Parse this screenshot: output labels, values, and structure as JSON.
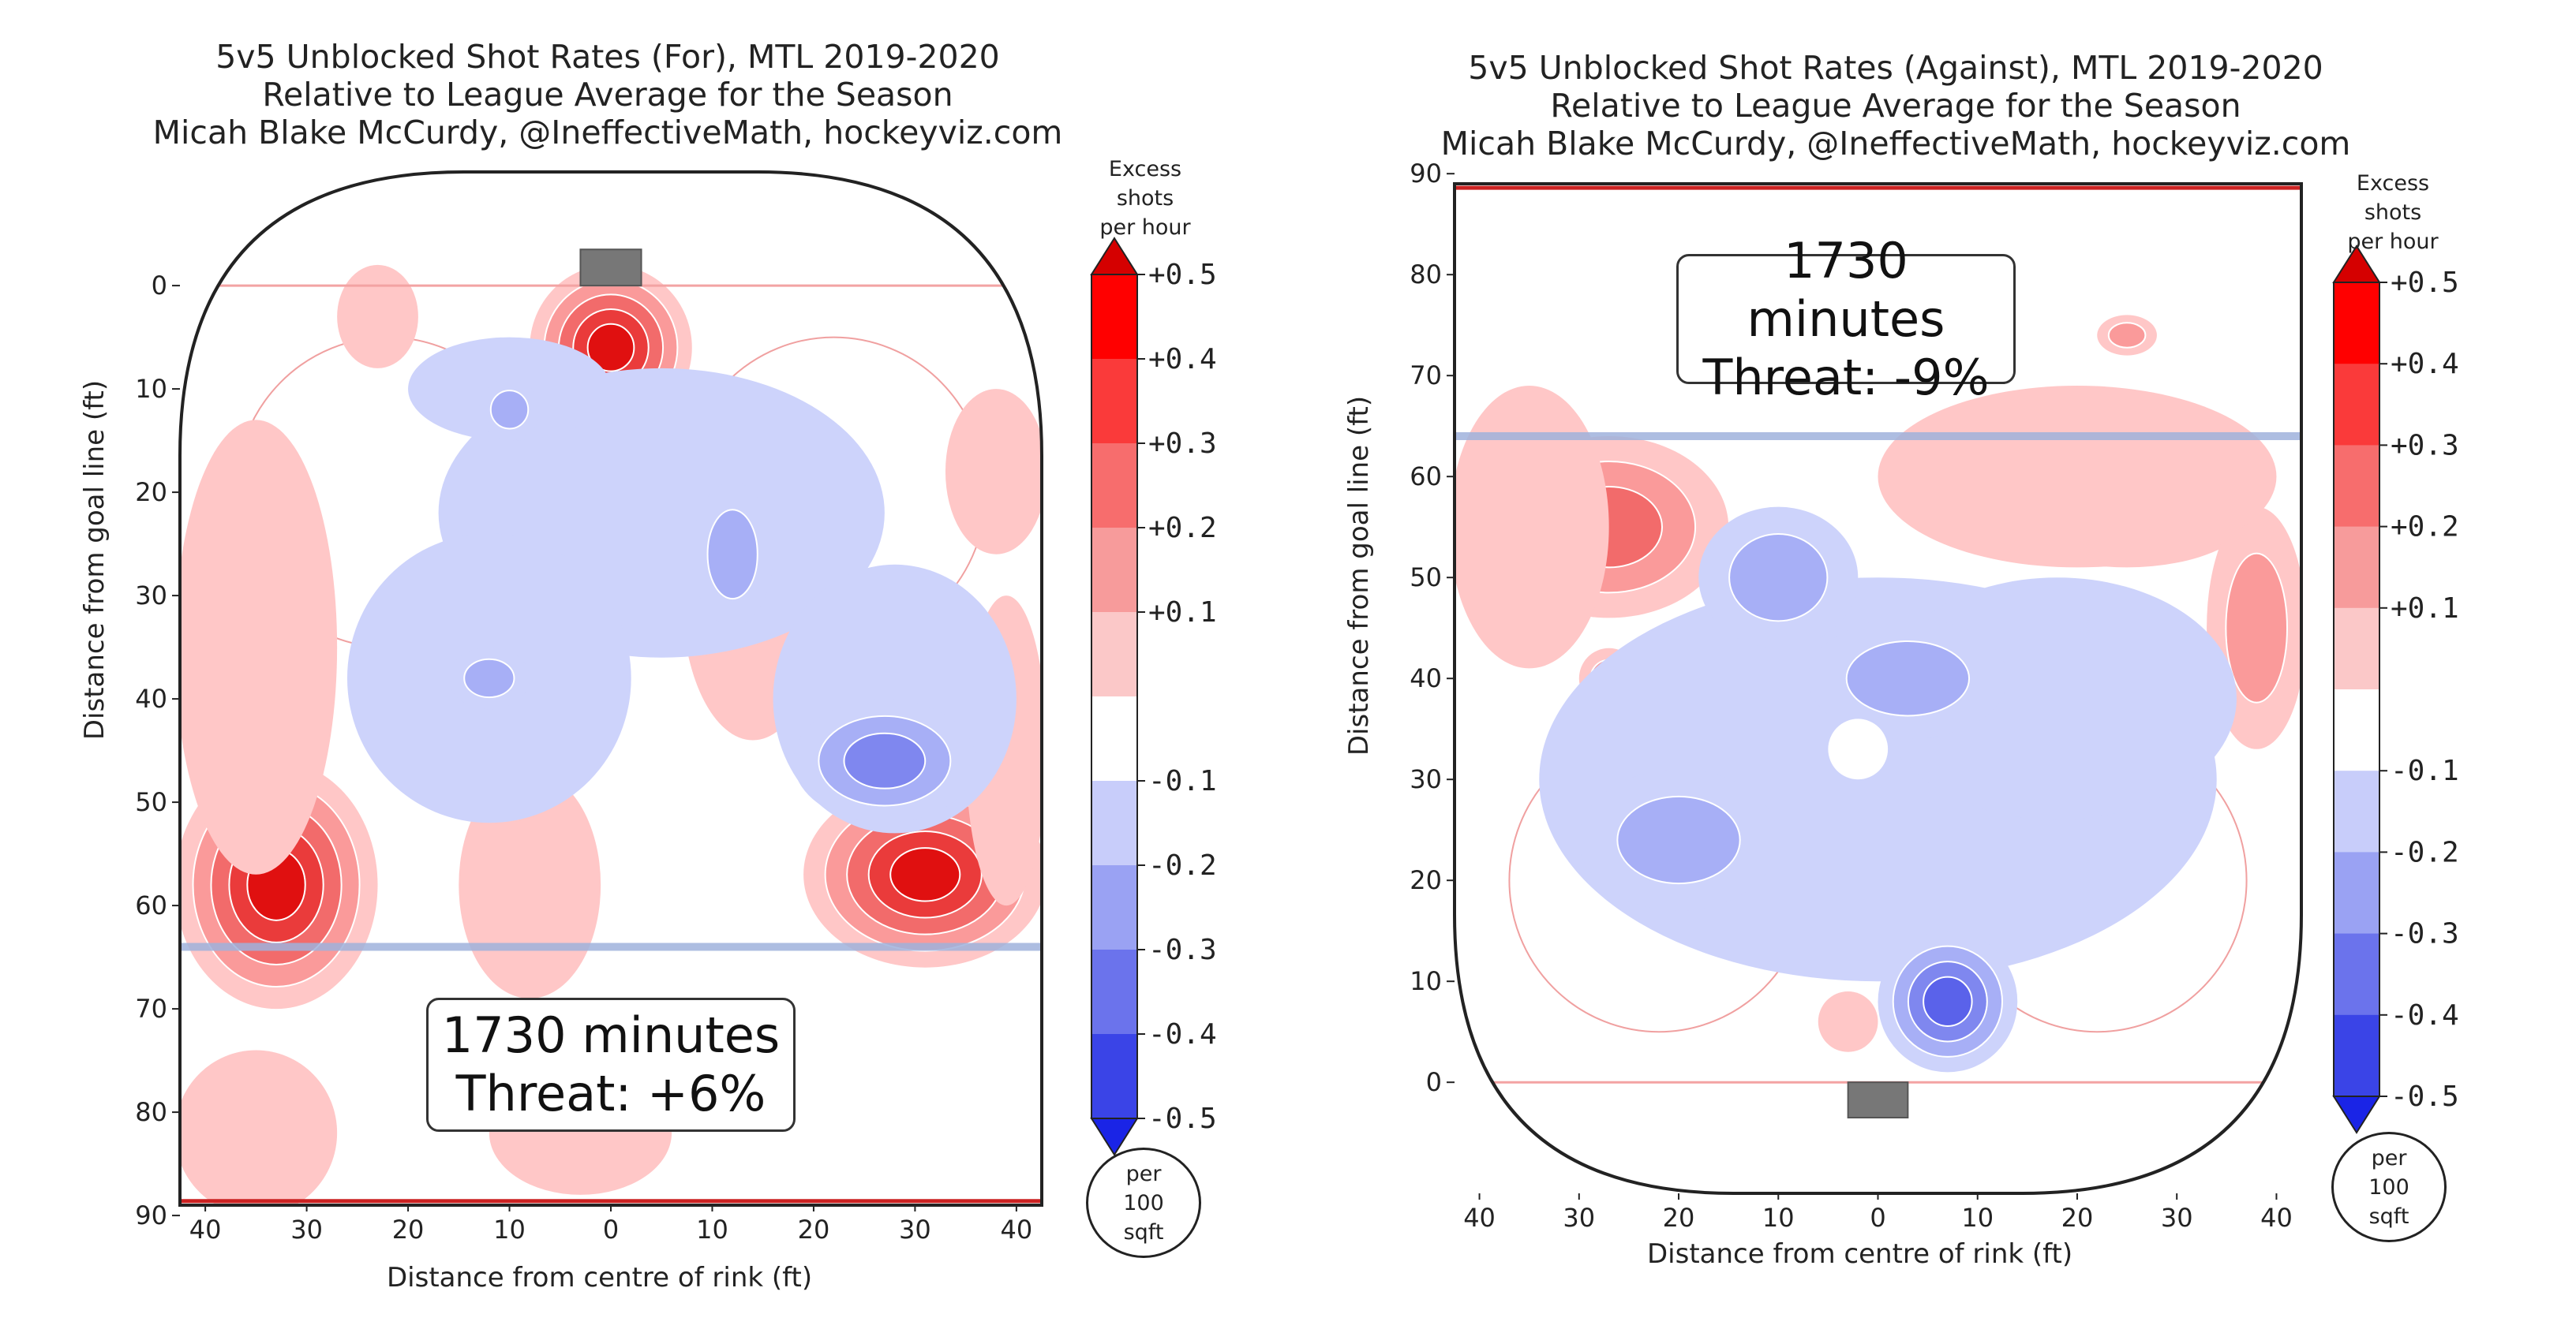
{
  "chart_data": [
    {
      "type": "heatmap",
      "title": "5v5 Unblocked Shot Rates (For), MTL 2019-2020",
      "subtitle": "Relative to League Average for the Season",
      "credit": "Micah Blake McCurdy, @IneffectiveMath, hockeyviz.com",
      "xlabel": "Distance from centre of rink (ft)",
      "ylabel": "Distance from goal line (ft)",
      "x_ticks": [
        "40",
        "30",
        "20",
        "10",
        "0",
        "10",
        "20",
        "30",
        "40"
      ],
      "y_ticks": [
        "0",
        "10",
        "20",
        "30",
        "40",
        "50",
        "60",
        "70",
        "80",
        "90"
      ],
      "xlim": [
        -42.5,
        42.5
      ],
      "ylim": [
        -11,
        89
      ],
      "y_direction": "down",
      "colorbar": {
        "title": [
          "Excess",
          "shots",
          "per hour"
        ],
        "ticks": [
          "+0.5",
          "+0.4",
          "+0.3",
          "+0.2",
          "+0.1",
          "-0.1",
          "-0.2",
          "-0.3",
          "-0.4",
          "-0.5"
        ],
        "units": [
          "per",
          "100",
          "sqft"
        ]
      },
      "annotation": [
        "1730 minutes",
        "Threat: +6%"
      ],
      "blobs": [
        {
          "x": -33,
          "y": 58,
          "rx": 10,
          "ry": 12,
          "level": 0.5
        },
        {
          "x": 31,
          "y": 57,
          "rx": 12,
          "ry": 9,
          "level": 0.5
        },
        {
          "x": 0,
          "y": 6,
          "rx": 8,
          "ry": 8,
          "level": 0.5
        },
        {
          "x": -35,
          "y": 35,
          "rx": 8,
          "ry": 22,
          "level": 0.1
        },
        {
          "x": 39,
          "y": 45,
          "rx": 4,
          "ry": 15,
          "level": 0.1
        },
        {
          "x": 38,
          "y": 18,
          "rx": 5,
          "ry": 8,
          "level": 0.1
        },
        {
          "x": -23,
          "y": 3,
          "rx": 4,
          "ry": 5,
          "level": 0.1
        },
        {
          "x": -3,
          "y": 23,
          "rx": 13,
          "ry": 5,
          "level": 0.1
        },
        {
          "x": 14,
          "y": 30,
          "rx": 7,
          "ry": 14,
          "level": 0.1
        },
        {
          "x": -8,
          "y": 58,
          "rx": 7,
          "ry": 11,
          "level": 0.1
        },
        {
          "x": -3,
          "y": 82,
          "rx": 9,
          "ry": 6,
          "level": 0.1
        },
        {
          "x": -35,
          "y": 82,
          "rx": 8,
          "ry": 8,
          "level": 0.1
        },
        {
          "x": 5,
          "y": 22,
          "rx": 22,
          "ry": 14,
          "level": -0.1
        },
        {
          "x": -12,
          "y": 38,
          "rx": 14,
          "ry": 14,
          "level": -0.1
        },
        {
          "x": -10,
          "y": 10,
          "rx": 10,
          "ry": 5,
          "level": -0.1
        },
        {
          "x": 28,
          "y": 40,
          "rx": 12,
          "ry": 13,
          "level": -0.1
        },
        {
          "x": 27,
          "y": 46,
          "rx": 9,
          "ry": 6,
          "level": -0.3
        },
        {
          "x": -12,
          "y": 38,
          "rx": 4,
          "ry": 3,
          "level": -0.2
        },
        {
          "x": 12,
          "y": 26,
          "rx": 4,
          "ry": 7,
          "level": -0.2
        },
        {
          "x": -10,
          "y": 12,
          "rx": 3,
          "ry": 3,
          "level": -0.2
        }
      ]
    },
    {
      "type": "heatmap",
      "title": "5v5 Unblocked Shot Rates (Against), MTL 2019-2020",
      "subtitle": "Relative to League Average for the Season",
      "credit": "Micah Blake McCurdy, @IneffectiveMath, hockeyviz.com",
      "xlabel": "Distance from centre of rink (ft)",
      "ylabel": "Distance from goal line (ft)",
      "x_ticks": [
        "40",
        "30",
        "20",
        "10",
        "0",
        "10",
        "20",
        "30",
        "40"
      ],
      "y_ticks": [
        "0",
        "10",
        "20",
        "30",
        "40",
        "50",
        "60",
        "70",
        "80",
        "90"
      ],
      "xlim": [
        -42.5,
        42.5
      ],
      "ylim": [
        -11,
        89
      ],
      "y_direction": "up",
      "colorbar": {
        "title": [
          "Excess",
          "shots",
          "per hour"
        ],
        "ticks": [
          "+0.5",
          "+0.4",
          "+0.3",
          "+0.2",
          "+0.1",
          "-0.1",
          "-0.2",
          "-0.3",
          "-0.4",
          "-0.5"
        ],
        "units": [
          "per",
          "100",
          "sqft"
        ]
      },
      "annotation": [
        "1730 minutes",
        "Threat: -9%"
      ],
      "blobs": [
        {
          "x": -27,
          "y": 55,
          "rx": 12,
          "ry": 9,
          "level": 0.3
        },
        {
          "x": 25,
          "y": 57,
          "rx": 13,
          "ry": 6,
          "level": 0.2
        },
        {
          "x": 38,
          "y": 45,
          "rx": 5,
          "ry": 12,
          "level": 0.2
        },
        {
          "x": -35,
          "y": 55,
          "rx": 8,
          "ry": 14,
          "level": 0.1
        },
        {
          "x": 20,
          "y": 60,
          "rx": 20,
          "ry": 9,
          "level": 0.1
        },
        {
          "x": 25,
          "y": 74,
          "rx": 3,
          "ry": 2,
          "level": 0.2
        },
        {
          "x": -27,
          "y": 40,
          "rx": 3,
          "ry": 3,
          "level": 0.2
        },
        {
          "x": 4,
          "y": 20,
          "rx": 7,
          "ry": 3,
          "level": 0.1
        },
        {
          "x": -3,
          "y": 6,
          "rx": 3,
          "ry": 3,
          "level": 0.1
        },
        {
          "x": 0,
          "y": 30,
          "rx": 34,
          "ry": 20,
          "level": -0.1
        },
        {
          "x": 18,
          "y": 38,
          "rx": 18,
          "ry": 12,
          "level": -0.1
        },
        {
          "x": -10,
          "y": 50,
          "rx": 8,
          "ry": 7,
          "level": -0.2
        },
        {
          "x": -20,
          "y": 24,
          "rx": 10,
          "ry": 7,
          "level": -0.2
        },
        {
          "x": 7,
          "y": 8,
          "rx": 7,
          "ry": 7,
          "level": -0.4
        },
        {
          "x": 3,
          "y": 40,
          "rx": 10,
          "ry": 6,
          "level": -0.2
        },
        {
          "x": -2,
          "y": 33,
          "rx": 3,
          "ry": 3,
          "level": 0.0
        }
      ]
    }
  ]
}
